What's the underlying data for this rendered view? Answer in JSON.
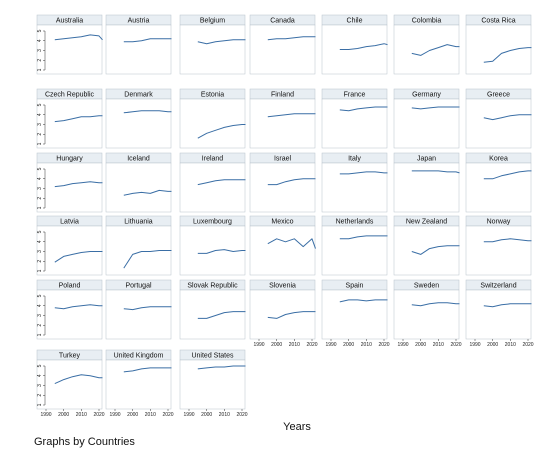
{
  "chart_data": {
    "type": "line",
    "layout": "small-multiples",
    "xlabel": "Years",
    "ylabel": "",
    "note": "Graphs by Countries",
    "xlim": [
      1990,
      2020
    ],
    "ylim": [
      1,
      5
    ],
    "x_ticks": [
      1990,
      2000,
      2010,
      2020
    ],
    "y_ticks": [
      1,
      2,
      3,
      4,
      5
    ],
    "series_color": "#3a6ea5",
    "x": [
      1995,
      2000,
      2005,
      2010,
      2015,
      2020,
      2022
    ],
    "panels": [
      {
        "name": "Australia",
        "values": [
          4.1,
          4.2,
          4.3,
          4.4,
          4.6,
          4.5,
          4.1
        ]
      },
      {
        "name": "Austria",
        "values": [
          3.9,
          3.9,
          4.0,
          4.2,
          4.2,
          4.2,
          4.2
        ]
      },
      {
        "name": "Belgium",
        "values": [
          3.9,
          3.7,
          3.9,
          4.0,
          4.1,
          4.1,
          4.1
        ]
      },
      {
        "name": "Canada",
        "values": [
          4.1,
          4.2,
          4.2,
          4.3,
          4.4,
          4.4,
          4.4
        ]
      },
      {
        "name": "Chile",
        "values": [
          3.1,
          3.1,
          3.2,
          3.4,
          3.5,
          3.7,
          3.6
        ]
      },
      {
        "name": "Colombia",
        "values": [
          2.7,
          2.5,
          3.0,
          3.3,
          3.6,
          3.4,
          3.4
        ]
      },
      {
        "name": "Costa Rica",
        "values": [
          1.8,
          1.9,
          2.7,
          3.0,
          3.2,
          3.3,
          3.3
        ]
      },
      {
        "name": "Czech Republic",
        "values": [
          3.3,
          3.4,
          3.6,
          3.8,
          3.8,
          3.9,
          3.9
        ]
      },
      {
        "name": "Denmark",
        "values": [
          4.2,
          4.3,
          4.4,
          4.4,
          4.4,
          4.3,
          4.3
        ]
      },
      {
        "name": "Estonia",
        "values": [
          1.6,
          2.1,
          2.4,
          2.7,
          2.9,
          3.0,
          3.0
        ]
      },
      {
        "name": "Finland",
        "values": [
          3.8,
          3.9,
          4.0,
          4.1,
          4.1,
          4.1,
          4.1
        ]
      },
      {
        "name": "France",
        "values": [
          4.5,
          4.4,
          4.6,
          4.7,
          4.8,
          4.8,
          4.8
        ]
      },
      {
        "name": "Germany",
        "values": [
          4.7,
          4.6,
          4.7,
          4.8,
          4.8,
          4.8,
          4.8
        ]
      },
      {
        "name": "Greece",
        "values": [
          3.7,
          3.5,
          3.7,
          3.9,
          4.0,
          4.0,
          4.0
        ]
      },
      {
        "name": "Hungary",
        "values": [
          3.2,
          3.3,
          3.5,
          3.6,
          3.7,
          3.6,
          3.6
        ]
      },
      {
        "name": "Iceland",
        "values": [
          2.3,
          2.5,
          2.6,
          2.5,
          2.8,
          2.7,
          2.7
        ]
      },
      {
        "name": "Ireland",
        "values": [
          3.4,
          3.6,
          3.8,
          3.9,
          3.9,
          3.9,
          3.9
        ]
      },
      {
        "name": "Israel",
        "values": [
          3.4,
          3.4,
          3.7,
          3.9,
          4.0,
          4.0,
          4.0
        ]
      },
      {
        "name": "Italy",
        "values": [
          4.5,
          4.5,
          4.6,
          4.7,
          4.7,
          4.6,
          4.6
        ]
      },
      {
        "name": "Japan",
        "values": [
          4.8,
          4.8,
          4.8,
          4.8,
          4.7,
          4.7,
          4.6
        ]
      },
      {
        "name": "Korea",
        "values": [
          4.0,
          4.0,
          4.3,
          4.5,
          4.7,
          4.8,
          4.8
        ]
      },
      {
        "name": "Latvia",
        "values": [
          1.9,
          2.5,
          2.7,
          2.9,
          3.0,
          3.0,
          3.0
        ]
      },
      {
        "name": "Lithuania",
        "values": [
          1.3,
          2.7,
          3.0,
          3.0,
          3.1,
          3.1,
          3.1
        ]
      },
      {
        "name": "Luxembourg",
        "values": [
          2.8,
          2.8,
          3.1,
          3.2,
          3.0,
          3.1,
          3.1
        ]
      },
      {
        "name": "Mexico",
        "values": [
          3.8,
          4.3,
          4.0,
          4.3,
          3.5,
          4.3,
          3.3
        ]
      },
      {
        "name": "Netherlands",
        "values": [
          4.3,
          4.3,
          4.5,
          4.6,
          4.6,
          4.6,
          4.6
        ]
      },
      {
        "name": "New Zealand",
        "values": [
          3.0,
          2.7,
          3.3,
          3.5,
          3.6,
          3.6,
          3.6
        ]
      },
      {
        "name": "Norway",
        "values": [
          4.0,
          4.0,
          4.2,
          4.3,
          4.2,
          4.1,
          4.1
        ]
      },
      {
        "name": "Poland",
        "values": [
          3.8,
          3.7,
          3.9,
          4.0,
          4.1,
          4.0,
          4.0
        ]
      },
      {
        "name": "Portugal",
        "values": [
          3.7,
          3.6,
          3.8,
          3.9,
          3.9,
          3.9,
          3.9
        ]
      },
      {
        "name": "Slovak Republic",
        "values": [
          2.7,
          2.7,
          3.0,
          3.3,
          3.4,
          3.4,
          3.4
        ]
      },
      {
        "name": "Slovenia",
        "values": [
          2.8,
          2.7,
          3.1,
          3.3,
          3.4,
          3.4,
          3.4
        ]
      },
      {
        "name": "Spain",
        "values": [
          4.4,
          4.6,
          4.6,
          4.5,
          4.6,
          4.6,
          4.6
        ]
      },
      {
        "name": "Sweden",
        "values": [
          4.1,
          4.0,
          4.2,
          4.3,
          4.3,
          4.2,
          4.2
        ]
      },
      {
        "name": "Switzerland",
        "values": [
          4.0,
          3.9,
          4.1,
          4.2,
          4.2,
          4.2,
          4.2
        ]
      },
      {
        "name": "Turkey",
        "values": [
          3.2,
          3.6,
          3.9,
          4.1,
          4.0,
          3.8,
          3.8
        ]
      },
      {
        "name": "United Kingdom",
        "values": [
          4.4,
          4.5,
          4.7,
          4.8,
          4.8,
          4.8,
          4.8
        ]
      },
      {
        "name": "United States",
        "values": [
          4.7,
          4.8,
          4.9,
          4.9,
          5.0,
          5.0,
          5.0
        ]
      }
    ]
  }
}
